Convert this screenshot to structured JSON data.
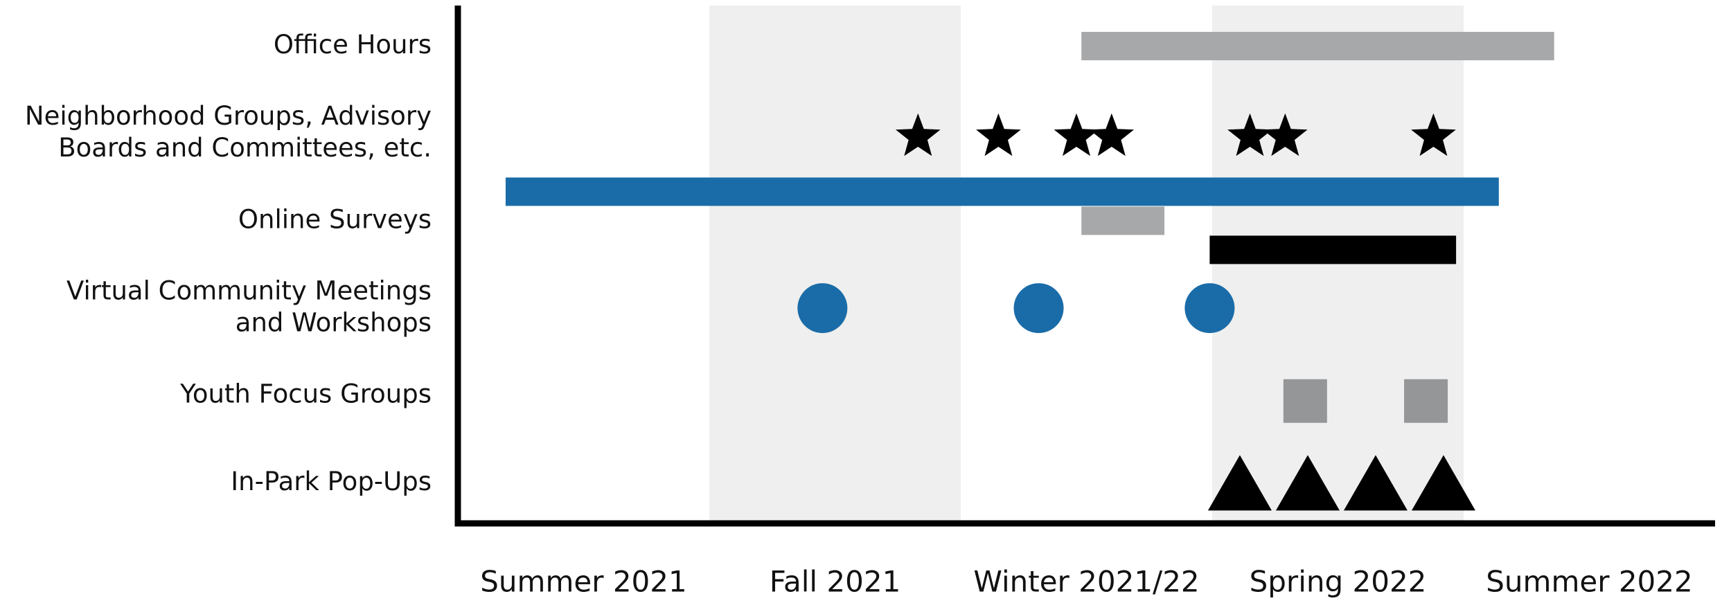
{
  "chart_data": {
    "type": "timeline",
    "xlim": [
      0,
      5
    ],
    "xticks": [
      {
        "value": 0.5,
        "label": "Summer 2021"
      },
      {
        "value": 1.5,
        "label": "Fall 2021"
      },
      {
        "value": 2.5,
        "label": "Winter 2021/22"
      },
      {
        "value": 3.5,
        "label": "Spring 2022"
      },
      {
        "value": 4.5,
        "label": "Summer 2022"
      }
    ],
    "bands": [
      [
        1,
        2
      ],
      [
        3,
        4
      ]
    ],
    "band_color": "#eeefee",
    "rows": [
      {
        "label_lines": [
          "Office Hours"
        ],
        "items": [
          {
            "shape": "bar",
            "color": "#a7a8aa",
            "start": 2.48,
            "end": 4.36
          }
        ]
      },
      {
        "label_lines": [
          "Neighborhood Groups, Advisory",
          "Boards and Committees, etc."
        ],
        "items": [
          {
            "shape": "star",
            "color": "#000000",
            "x": 1.83
          },
          {
            "shape": "star",
            "color": "#000000",
            "x": 2.15
          },
          {
            "shape": "star",
            "color": "#000000",
            "x": 2.46
          },
          {
            "shape": "star",
            "color": "#000000",
            "x": 2.6
          },
          {
            "shape": "star",
            "color": "#000000",
            "x": 3.15
          },
          {
            "shape": "star",
            "color": "#000000",
            "x": 3.29
          },
          {
            "shape": "star",
            "color": "#000000",
            "x": 3.88
          }
        ]
      },
      {
        "label_lines": [
          "Online Surveys"
        ],
        "items": [
          {
            "shape": "bar",
            "color": "#1a6ca8",
            "start": 0.19,
            "end": 4.14
          },
          {
            "shape": "bar",
            "color": "#a7a8aa",
            "start": 2.48,
            "end": 2.81
          },
          {
            "shape": "bar",
            "color": "#000000",
            "start": 2.99,
            "end": 3.97
          }
        ]
      },
      {
        "label_lines": [
          "Virtual Community Meetings",
          "and Workshops"
        ],
        "items": [
          {
            "shape": "circle",
            "color": "#1a6ca8",
            "x": 1.45
          },
          {
            "shape": "circle",
            "color": "#1a6ca8",
            "x": 2.31
          },
          {
            "shape": "circle",
            "color": "#1a6ca8",
            "x": 2.99
          }
        ]
      },
      {
        "label_lines": [
          "Youth Focus Groups"
        ],
        "items": [
          {
            "shape": "square",
            "color": "#959698",
            "x": 3.37
          },
          {
            "shape": "square",
            "color": "#959698",
            "x": 3.85
          }
        ]
      },
      {
        "label_lines": [
          "In-Park Pop-Ups"
        ],
        "items": [
          {
            "shape": "triangle",
            "color": "#000000",
            "x": 3.11
          },
          {
            "shape": "triangle",
            "color": "#000000",
            "x": 3.38
          },
          {
            "shape": "triangle",
            "color": "#000000",
            "x": 3.65
          },
          {
            "shape": "triangle",
            "color": "#000000",
            "x": 3.92
          }
        ]
      }
    ]
  }
}
